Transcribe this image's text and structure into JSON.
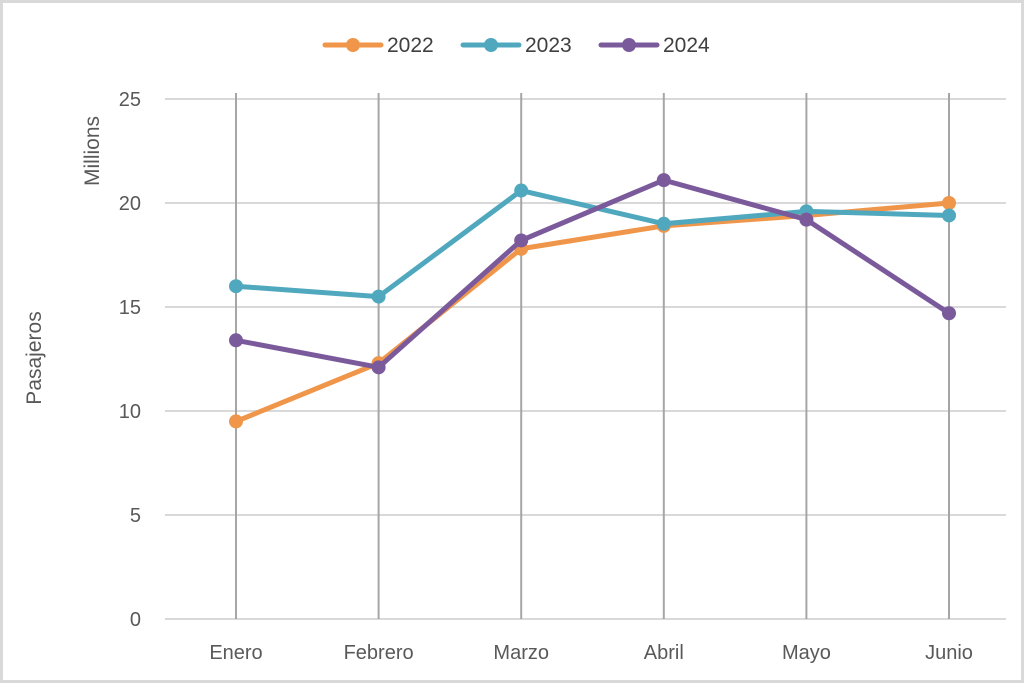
{
  "chart_data": {
    "type": "line",
    "categories": [
      "Enero",
      "Febrero",
      "Marzo",
      "Abril",
      "Mayo",
      "Junio"
    ],
    "series": [
      {
        "name": "2022",
        "color": "#f0964a",
        "values": [
          9.5,
          12.3,
          17.8,
          18.9,
          19.4,
          20.0
        ]
      },
      {
        "name": "2023",
        "color": "#4fa8bd",
        "values": [
          16.0,
          15.5,
          20.6,
          19.0,
          19.6,
          19.4
        ]
      },
      {
        "name": "2024",
        "color": "#7b5a9c",
        "values": [
          13.4,
          12.1,
          18.2,
          21.1,
          19.2,
          14.7
        ]
      }
    ],
    "ylabel": "Pasajeros",
    "yunit": "Millions",
    "ylim": [
      0,
      25
    ],
    "yticks": [
      0,
      5,
      10,
      15,
      20,
      25
    ],
    "grid": true,
    "legend": "top"
  }
}
